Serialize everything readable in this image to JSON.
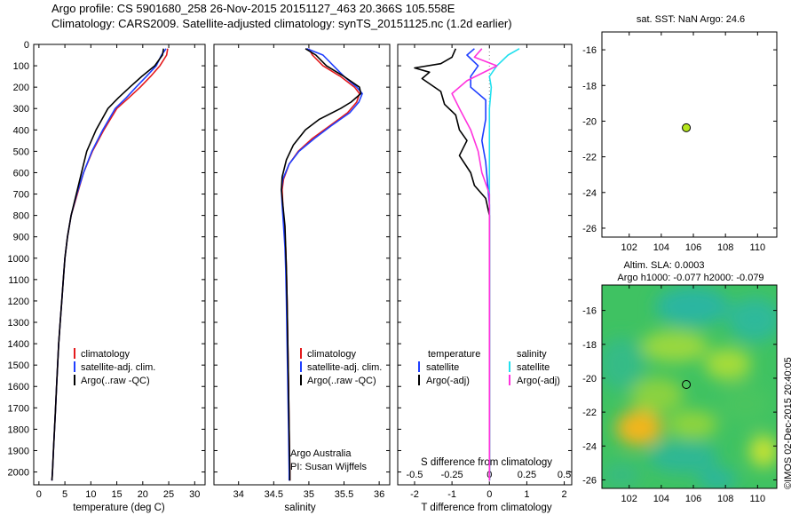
{
  "header": {
    "line1": "Argo profile: CS 5901680_258 26-Nov-2015 20151127_463 20.366S 105.558E",
    "line2": "Climatology: CARS2009. Satellite-adjusted climatology: synTS_20151125.nc (1.2d earlier)"
  },
  "colors": {
    "clim": "#e41a1c",
    "sat": "#1f3fff",
    "argo": "#000000",
    "sal_sat": "#22e0ee",
    "sal_argo": "#ff33dd",
    "float": "#b5e61d"
  },
  "depth_axis": {
    "ylim": [
      0,
      2060
    ],
    "ticks": [
      0,
      100,
      200,
      300,
      400,
      500,
      600,
      700,
      800,
      900,
      1000,
      1100,
      1200,
      1300,
      1400,
      1500,
      1600,
      1700,
      1800,
      1900,
      2000
    ]
  },
  "chart_data": [
    {
      "type": "line",
      "panel": "temperature",
      "xlabel": "temperature (deg C)",
      "xlim": [
        -1,
        32
      ],
      "xticks": [
        0,
        5,
        10,
        15,
        20,
        25,
        30
      ],
      "legend": [
        "climatology",
        "satellite-adj. clim.",
        "Argo(..raw -QC)"
      ],
      "series": [
        {
          "name": "climatology",
          "color": "#e41a1c",
          "points": [
            [
              24.8,
              20
            ],
            [
              24.6,
              50
            ],
            [
              23.3,
              100
            ],
            [
              21.5,
              150
            ],
            [
              19.5,
              200
            ],
            [
              17.3,
              250
            ],
            [
              15.0,
              300
            ],
            [
              12.5,
              400
            ],
            [
              10.3,
              500
            ],
            [
              8.6,
              600
            ],
            [
              7.4,
              700
            ],
            [
              6.2,
              800
            ],
            [
              5.5,
              900
            ],
            [
              5.0,
              1000
            ],
            [
              4.7,
              1100
            ],
            [
              4.4,
              1200
            ],
            [
              4.1,
              1300
            ],
            [
              3.8,
              1400
            ],
            [
              3.6,
              1500
            ],
            [
              3.4,
              1600
            ],
            [
              3.2,
              1700
            ],
            [
              3.0,
              1800
            ],
            [
              2.8,
              1900
            ],
            [
              2.6,
              2000
            ],
            [
              2.5,
              2040
            ]
          ]
        },
        {
          "name": "satellite-adj. clim.",
          "color": "#1f3fff",
          "points": [
            [
              24.5,
              20
            ],
            [
              23.6,
              50
            ],
            [
              22.6,
              100
            ],
            [
              20.7,
              150
            ],
            [
              18.7,
              200
            ],
            [
              16.8,
              250
            ],
            [
              14.7,
              300
            ],
            [
              12.3,
              400
            ],
            [
              10.2,
              500
            ],
            [
              8.6,
              600
            ],
            [
              7.3,
              700
            ],
            [
              6.2,
              800
            ],
            [
              5.5,
              900
            ],
            [
              5.0,
              1000
            ],
            [
              4.7,
              1100
            ],
            [
              4.4,
              1200
            ],
            [
              4.1,
              1300
            ],
            [
              3.8,
              1400
            ],
            [
              3.6,
              1500
            ],
            [
              3.4,
              1600
            ],
            [
              3.2,
              1700
            ],
            [
              3.0,
              1800
            ],
            [
              2.8,
              1900
            ],
            [
              2.6,
              2000
            ],
            [
              2.5,
              2040
            ]
          ]
        },
        {
          "name": "Argo(..raw -QC)",
          "color": "#000000",
          "points": [
            [
              24.0,
              20
            ],
            [
              23.8,
              50
            ],
            [
              22.3,
              100
            ],
            [
              19.8,
              150
            ],
            [
              17.5,
              200
            ],
            [
              15.3,
              250
            ],
            [
              13.3,
              300
            ],
            [
              11.0,
              400
            ],
            [
              9.2,
              500
            ],
            [
              8.2,
              600
            ],
            [
              7.2,
              700
            ],
            [
              6.2,
              800
            ],
            [
              5.5,
              900
            ],
            [
              5.0,
              1000
            ],
            [
              4.7,
              1100
            ],
            [
              4.4,
              1200
            ],
            [
              4.1,
              1300
            ],
            [
              3.8,
              1400
            ],
            [
              3.6,
              1500
            ],
            [
              3.4,
              1600
            ],
            [
              3.2,
              1700
            ],
            [
              3.0,
              1800
            ],
            [
              2.8,
              1900
            ],
            [
              2.6,
              2000
            ],
            [
              2.5,
              2040
            ]
          ]
        }
      ]
    },
    {
      "type": "line",
      "panel": "salinity",
      "xlabel": "salinity",
      "xlim": [
        33.65,
        36.15
      ],
      "xticks": [
        34,
        34.5,
        35,
        35.5,
        36
      ],
      "legend": [
        "climatology",
        "satellite-adj. clim.",
        "Argo(..raw -QC)"
      ],
      "series": [
        {
          "name": "climatology",
          "color": "#e41a1c",
          "points": [
            [
              35.0,
              20
            ],
            [
              35.05,
              50
            ],
            [
              35.2,
              100
            ],
            [
              35.45,
              150
            ],
            [
              35.65,
              200
            ],
            [
              35.72,
              230
            ],
            [
              35.68,
              270
            ],
            [
              35.55,
              320
            ],
            [
              35.3,
              380
            ],
            [
              35.05,
              440
            ],
            [
              34.85,
              500
            ],
            [
              34.72,
              560
            ],
            [
              34.64,
              630
            ],
            [
              34.62,
              680
            ],
            [
              34.63,
              750
            ],
            [
              34.65,
              850
            ],
            [
              34.67,
              950
            ],
            [
              34.68,
              1050
            ],
            [
              34.69,
              1200
            ],
            [
              34.7,
              1400
            ],
            [
              34.71,
              1600
            ],
            [
              34.72,
              1800
            ],
            [
              34.73,
              2000
            ],
            [
              34.73,
              2040
            ]
          ]
        },
        {
          "name": "satellite-adj. clim.",
          "color": "#1f3fff",
          "points": [
            [
              34.97,
              20
            ],
            [
              35.2,
              50
            ],
            [
              35.35,
              100
            ],
            [
              35.5,
              150
            ],
            [
              35.68,
              200
            ],
            [
              35.76,
              230
            ],
            [
              35.71,
              270
            ],
            [
              35.58,
              320
            ],
            [
              35.32,
              380
            ],
            [
              35.08,
              440
            ],
            [
              34.86,
              500
            ],
            [
              34.72,
              560
            ],
            [
              34.63,
              630
            ],
            [
              34.61,
              680
            ],
            [
              34.62,
              750
            ],
            [
              34.64,
              850
            ],
            [
              34.66,
              950
            ],
            [
              34.67,
              1050
            ],
            [
              34.68,
              1200
            ],
            [
              34.69,
              1400
            ],
            [
              34.7,
              1600
            ],
            [
              34.71,
              1800
            ],
            [
              34.72,
              2000
            ],
            [
              34.72,
              2040
            ]
          ]
        },
        {
          "name": "Argo(..raw -QC)",
          "color": "#000000",
          "points": [
            [
              34.95,
              20
            ],
            [
              35.1,
              50
            ],
            [
              35.25,
              100
            ],
            [
              35.5,
              150
            ],
            [
              35.72,
              200
            ],
            [
              35.74,
              230
            ],
            [
              35.6,
              270
            ],
            [
              35.45,
              300
            ],
            [
              35.15,
              350
            ],
            [
              34.95,
              400
            ],
            [
              34.78,
              470
            ],
            [
              34.68,
              540
            ],
            [
              34.62,
              620
            ],
            [
              34.61,
              680
            ],
            [
              34.63,
              750
            ],
            [
              34.66,
              850
            ],
            [
              34.67,
              950
            ],
            [
              34.68,
              1050
            ],
            [
              34.69,
              1200
            ],
            [
              34.7,
              1400
            ],
            [
              34.71,
              1600
            ],
            [
              34.72,
              1800
            ],
            [
              34.73,
              2000
            ],
            [
              34.73,
              2040
            ]
          ]
        }
      ]
    },
    {
      "type": "line",
      "panel": "difference",
      "xlabel": "T difference from climatology",
      "xlabel_top": "S difference from climatology",
      "xlim": [
        -2.45,
        2.2
      ],
      "xticks": [
        -2,
        -1,
        0,
        1,
        2
      ],
      "xticks_top": [
        "-0.5",
        "-0.25",
        "0",
        "0.25",
        "0.5"
      ],
      "legend_t": [
        "temperature",
        "satellite",
        "Argo(-adj)"
      ],
      "legend_s": [
        "salinity",
        "satellite",
        "Argo(-adj)"
      ],
      "series": [
        {
          "name": "satellite",
          "color": "#1f3fff",
          "points": [
            [
              -0.4,
              20
            ],
            [
              -0.6,
              50
            ],
            [
              -0.3,
              100
            ],
            [
              -0.5,
              150
            ],
            [
              -0.5,
              200
            ],
            [
              -0.1,
              260
            ],
            [
              -0.1,
              350
            ],
            [
              -0.2,
              450
            ],
            [
              -0.1,
              550
            ],
            [
              -0.05,
              650
            ],
            [
              0.0,
              750
            ],
            [
              0.0,
              900
            ],
            [
              0.0,
              1200
            ],
            [
              0.0,
              1600
            ],
            [
              0.0,
              2000
            ],
            [
              0.0,
              2040
            ]
          ]
        },
        {
          "name": "Argo(-adj)",
          "color": "#000000",
          "points": [
            [
              -0.9,
              20
            ],
            [
              -1.0,
              60
            ],
            [
              -1.3,
              90
            ],
            [
              -2.0,
              110
            ],
            [
              -1.6,
              130
            ],
            [
              -1.8,
              160
            ],
            [
              -1.3,
              220
            ],
            [
              -1.2,
              280
            ],
            [
              -0.9,
              330
            ],
            [
              -0.8,
              400
            ],
            [
              -0.6,
              450
            ],
            [
              -0.8,
              520
            ],
            [
              -0.5,
              600
            ],
            [
              -0.4,
              660
            ],
            [
              -0.1,
              720
            ],
            [
              0.0,
              800
            ],
            [
              0.0,
              1000
            ],
            [
              0.0,
              1500
            ],
            [
              0.0,
              2000
            ],
            [
              0.0,
              2040
            ]
          ]
        },
        {
          "name": "salinity satellite",
          "color": "#22e0ee",
          "points": [
            [
              0.8,
              20
            ],
            [
              0.5,
              50
            ],
            [
              0.2,
              100
            ],
            [
              0.0,
              150
            ],
            [
              0.05,
              200
            ],
            [
              0.0,
              300
            ],
            [
              0.0,
              500
            ],
            [
              0.0,
              700
            ],
            [
              0.0,
              900
            ],
            [
              0.0,
              1200
            ],
            [
              0.0,
              1600
            ],
            [
              0.0,
              2000
            ],
            [
              0.0,
              2040
            ]
          ]
        },
        {
          "name": "salinity Argo(-adj)",
          "color": "#ff33dd",
          "points": [
            [
              -0.2,
              20
            ],
            [
              -0.4,
              60
            ],
            [
              0.2,
              100
            ],
            [
              -0.6,
              170
            ],
            [
              -1.0,
              230
            ],
            [
              -0.8,
              300
            ],
            [
              -0.5,
              400
            ],
            [
              -0.3,
              500
            ],
            [
              -0.2,
              600
            ],
            [
              0.0,
              700
            ],
            [
              0.0,
              800
            ],
            [
              0.0,
              1000
            ],
            [
              0.0,
              1500
            ],
            [
              0.0,
              2000
            ],
            [
              0.0,
              2040
            ]
          ]
        }
      ]
    },
    {
      "type": "scatter",
      "panel": "sst-map",
      "title": "sat. SST: NaN Argo: 24.6",
      "xlim": [
        100.3,
        111.2
      ],
      "ylim": [
        -26.5,
        -15
      ],
      "xticks": [
        102,
        104,
        106,
        108,
        110
      ],
      "yticks": [
        -16,
        -18,
        -20,
        -22,
        -24,
        -26
      ],
      "points": [
        [
          105.56,
          -20.37
        ]
      ]
    },
    {
      "type": "heatmap",
      "panel": "sla-map",
      "title1": "Altim. SLA: 0.0003",
      "title2": "Argo h1000: -0.077 h2000: -0.079",
      "xlim": [
        100.3,
        111.2
      ],
      "ylim": [
        -26.5,
        -14.5
      ],
      "xticks": [
        102,
        104,
        106,
        108,
        110
      ],
      "yticks": [
        -16,
        -18,
        -20,
        -22,
        -24,
        -26
      ],
      "points": [
        [
          105.56,
          -20.37
        ]
      ]
    }
  ],
  "notes": {
    "institution": "Argo Australia",
    "pi": "PI: Susan Wijffels"
  },
  "side_text": "©IMOS 02-Dec-2015 20:40:05"
}
